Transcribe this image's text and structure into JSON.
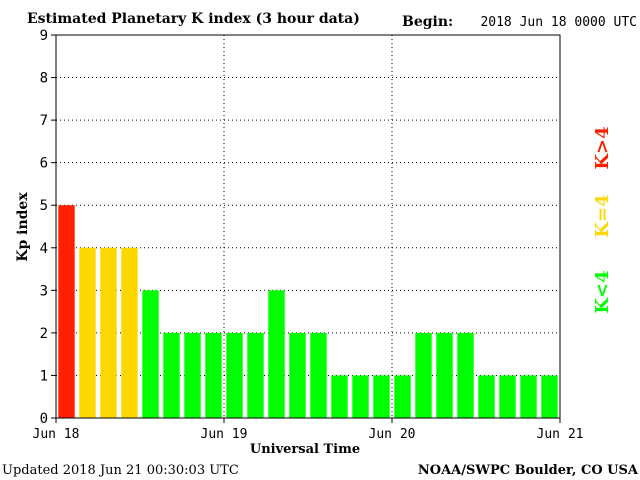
{
  "chart_data": {
    "type": "bar",
    "title": "Estimated Planetary K index (3 hour data)",
    "begin_label": "Begin:",
    "begin_value": "2018 Jun 18 0000 UTC",
    "xlabel": "Universal Time",
    "ylabel": "Kp index",
    "ylim": [
      0,
      9
    ],
    "yticks": [
      "0",
      "1",
      "2",
      "3",
      "4",
      "5",
      "6",
      "7",
      "8",
      "9"
    ],
    "xticks": [
      "Jun 18",
      "Jun 19",
      "Jun 20",
      "Jun 21"
    ],
    "values": [
      5,
      4,
      4,
      4,
      3,
      2,
      2,
      2,
      2,
      2,
      3,
      2,
      2,
      1,
      1,
      1,
      1,
      2,
      2,
      2,
      1,
      1,
      1,
      1
    ],
    "grid": true,
    "legend": [
      {
        "text": "K<4",
        "color": "#00ff00"
      },
      {
        "text": "K=4",
        "color": "#ffd700"
      },
      {
        "text": "K>4",
        "color": "#ff2000"
      }
    ],
    "colors": {
      "low": "#00ff00",
      "equal": "#ffd700",
      "high": "#ff2000"
    }
  },
  "footer": {
    "updated": "Updated 2018 Jun 21 00:30:03 UTC",
    "source": "NOAA/SWPC Boulder, CO USA"
  }
}
